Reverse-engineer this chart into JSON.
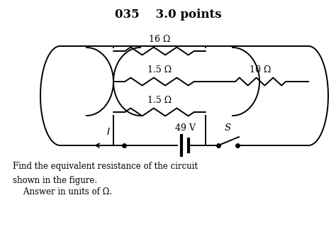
{
  "title": "035    3.0 points",
  "title_fontsize": 12,
  "body_text1": "Find the equivalent resistance of the circuit",
  "body_text2": "shown in the figure.",
  "body_text3": "    Answer in units of Ω.",
  "label_16": "16 Ω",
  "label_15a": "1.5 Ω",
  "label_15b": "1.5 Ω",
  "label_10": "10 Ω",
  "label_49": "49 V",
  "label_I": "I",
  "label_S": "S",
  "bg_color": "#ffffff",
  "line_color": "#000000",
  "fig_width": 4.74,
  "fig_height": 3.2,
  "dpi": 100
}
